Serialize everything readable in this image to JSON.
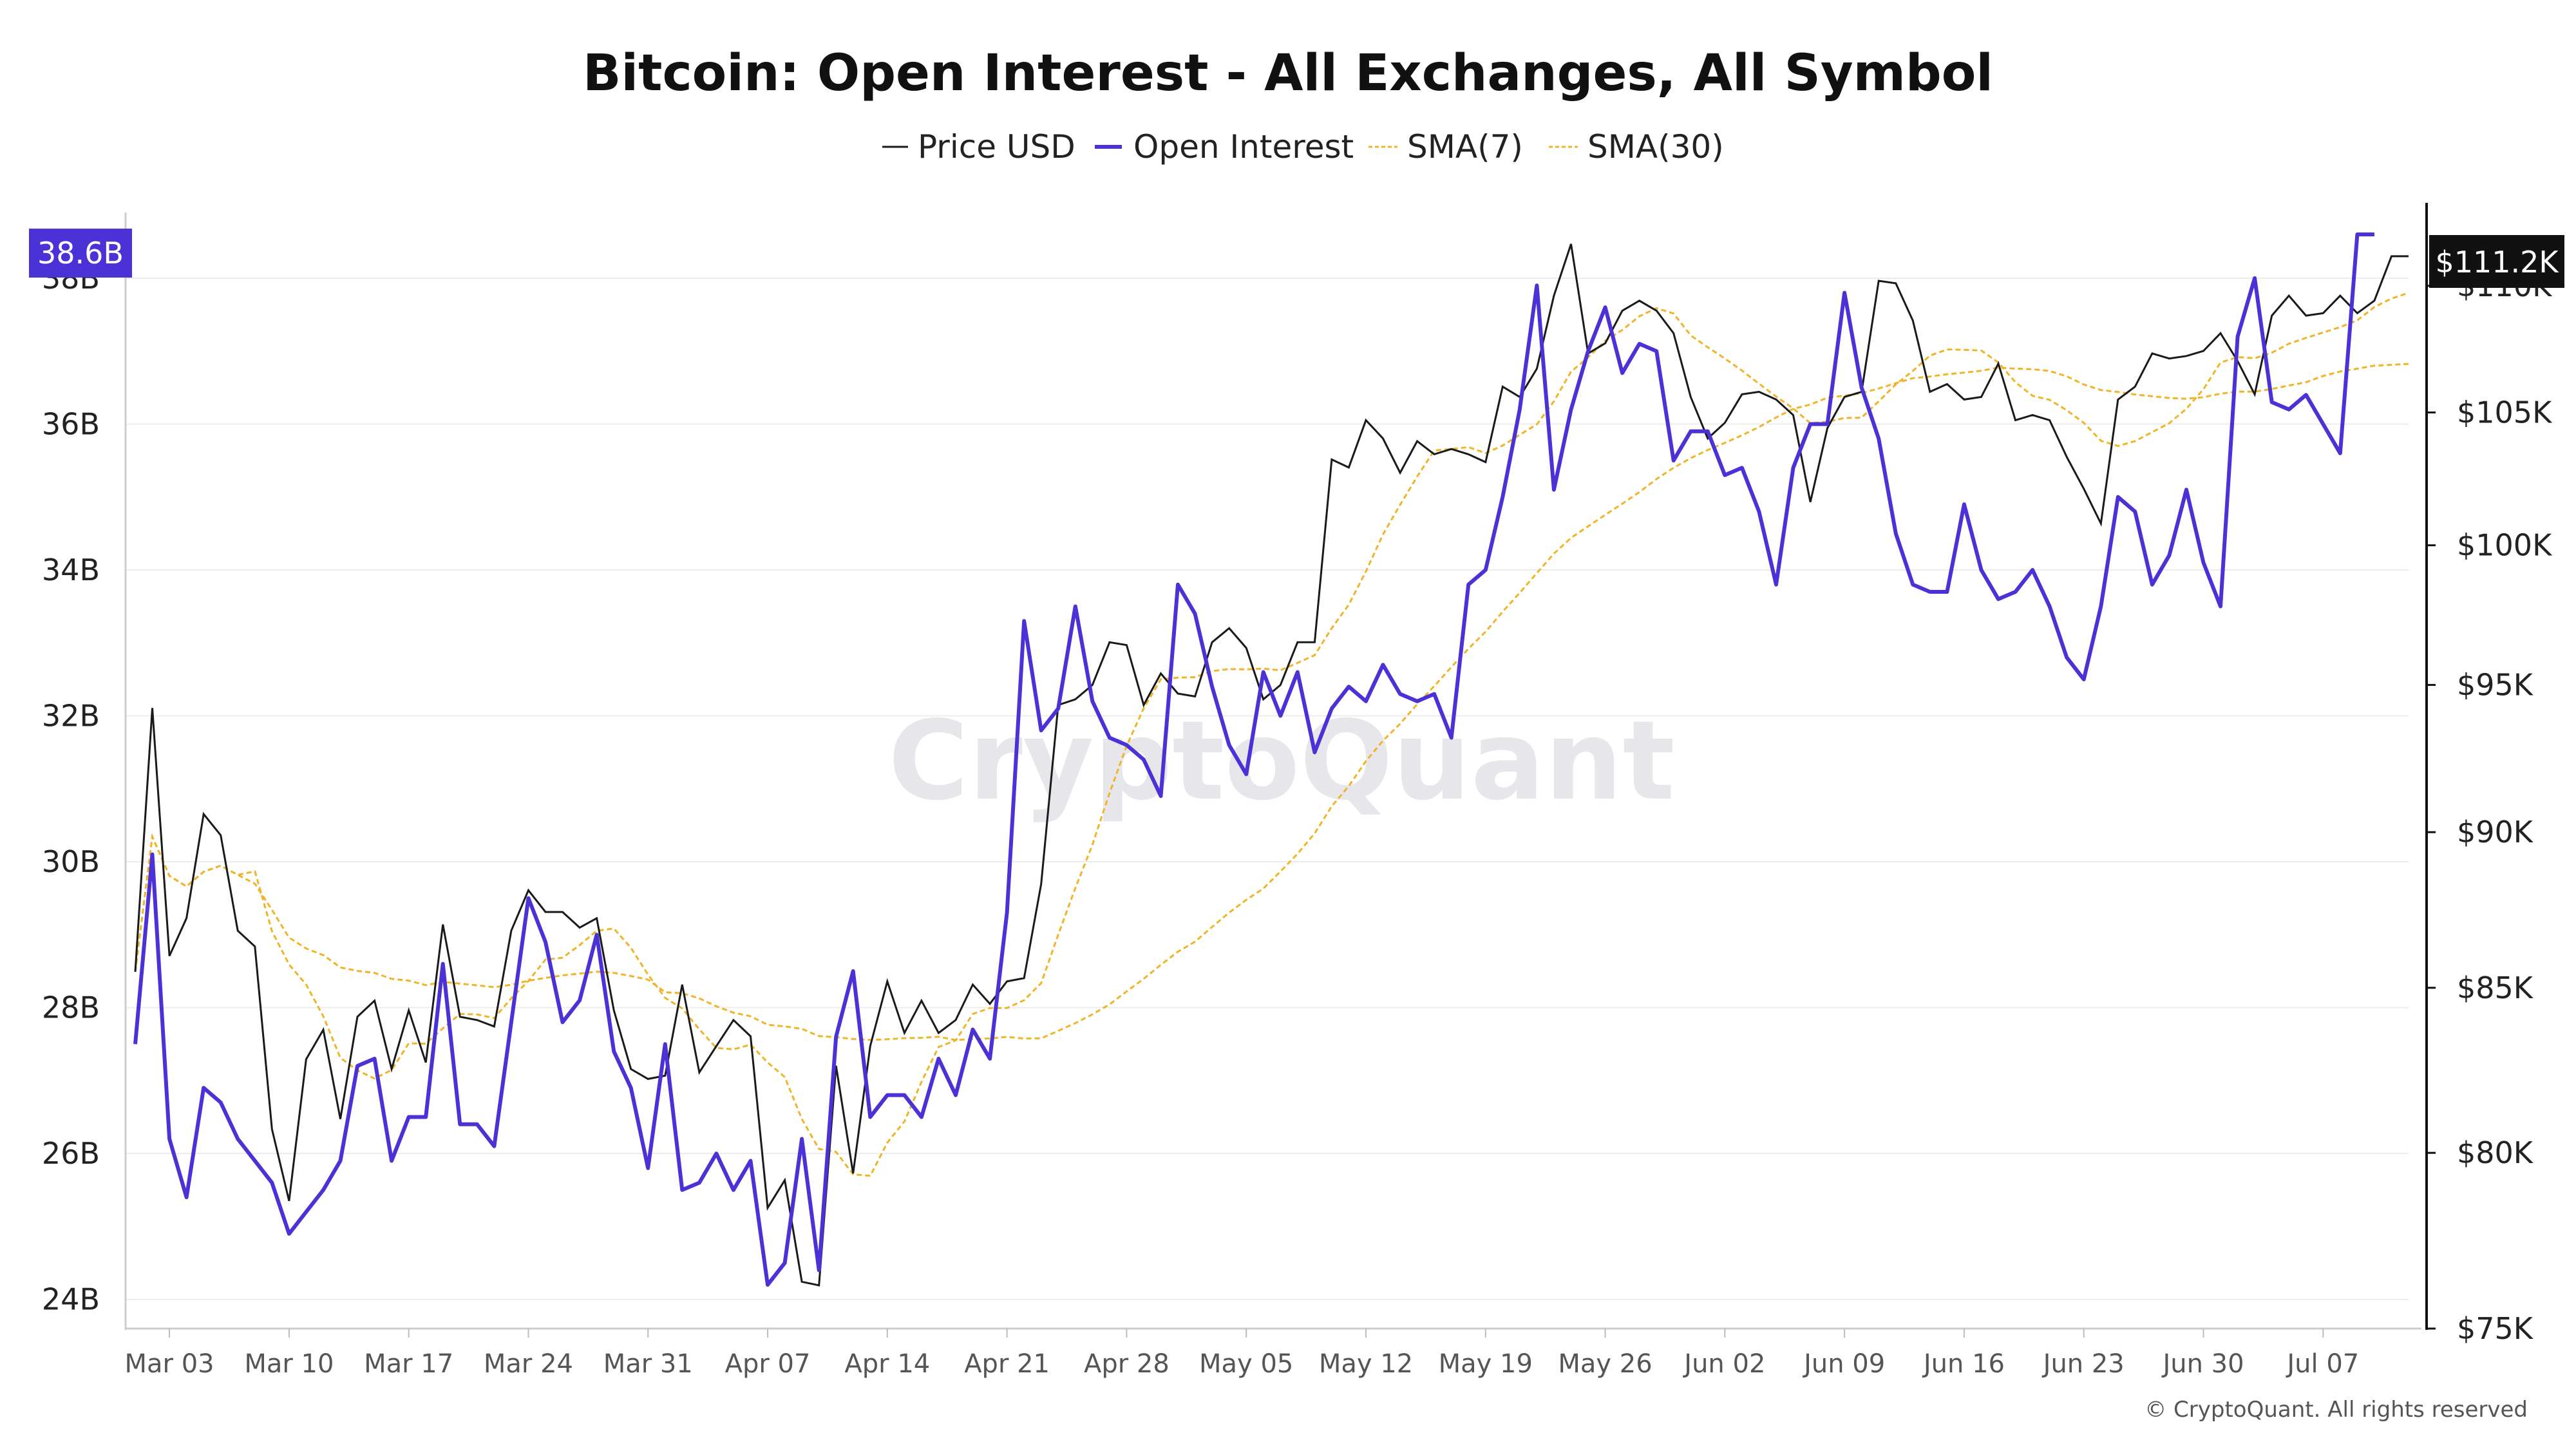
{
  "colors": {
    "price": "#1a1a1a",
    "open_interest": "#4b32d6",
    "sma": "#f0b429",
    "badge_left_bg": "#4b32d6",
    "badge_right_bg": "#111111",
    "grid": "#ececec"
  },
  "watermark": "CryptoQuant",
  "copyright": "© CryptoQuant. All rights reserved",
  "chart_data": {
    "type": "line",
    "title": "Bitcoin: Open Interest - All Exchanges, All Symbol",
    "legend": {
      "placement": "top-center",
      "entries": [
        "Price USD",
        "Open Interest",
        "SMA(7)",
        "SMA(30)"
      ]
    },
    "x_start": "Mar 01",
    "x_ticks": [
      "Mar 03",
      "Mar 10",
      "Mar 17",
      "Mar 24",
      "Mar 31",
      "Apr 07",
      "Apr 14",
      "Apr 21",
      "Apr 28",
      "May 05",
      "May 12",
      "May 19",
      "May 26",
      "Jun 02",
      "Jun 09",
      "Jun 16",
      "Jun 23",
      "Jun 30",
      "Jul 07"
    ],
    "y_left": {
      "ticks": [
        "24B",
        "26B",
        "28B",
        "30B",
        "32B",
        "34B",
        "36B",
        "38B"
      ],
      "tick_values": [
        24,
        26,
        28,
        30,
        32,
        34,
        36,
        38
      ],
      "range": [
        23.6,
        38.9
      ],
      "unit": "B"
    },
    "y_right": {
      "ticks": [
        "$75K",
        "$80K",
        "$85K",
        "$90K",
        "$95K",
        "$100K",
        "$105K",
        "$110K"
      ],
      "tick_values": [
        75,
        80,
        85,
        90,
        95,
        100,
        105,
        110
      ],
      "range": [
        75,
        113
      ],
      "scale": "log",
      "unit": "K"
    },
    "badges": {
      "left": "38.6B",
      "left_value": 38.6,
      "right": "$111.2K",
      "right_value": 111.2
    },
    "series": [
      {
        "name": "Price USD",
        "axis": "right",
        "values": [
          85.5,
          94.2,
          86.0,
          87.2,
          90.6,
          89.9,
          86.8,
          86.3,
          80.7,
          78.6,
          82.8,
          83.7,
          81.0,
          84.1,
          84.6,
          82.5,
          84.3,
          82.7,
          87.0,
          84.1,
          84.0,
          83.8,
          86.8,
          88.1,
          87.4,
          87.4,
          86.9,
          87.2,
          84.3,
          82.5,
          82.2,
          82.3,
          85.1,
          82.4,
          83.2,
          84.0,
          83.5,
          78.4,
          79.2,
          76.3,
          76.2,
          82.6,
          79.4,
          83.2,
          85.2,
          83.6,
          84.6,
          83.6,
          84.0,
          85.1,
          84.5,
          85.2,
          85.3,
          88.3,
          94.3,
          94.5,
          95.0,
          96.5,
          96.4,
          94.3,
          95.4,
          94.7,
          94.6,
          96.5,
          97.0,
          96.3,
          94.5,
          95.0,
          96.5,
          96.5,
          103.2,
          102.9,
          104.7,
          104.0,
          102.7,
          103.9,
          103.4,
          103.6,
          103.4,
          103.1,
          106.0,
          105.6,
          106.7,
          109.6,
          111.7,
          107.3,
          107.7,
          109.0,
          109.4,
          109.0,
          108.1,
          105.6,
          104.0,
          104.6,
          105.7,
          105.8,
          105.5,
          104.9,
          101.6,
          104.4,
          105.6,
          105.8,
          110.2,
          110.1,
          108.6,
          105.8,
          106.1,
          105.5,
          105.6,
          106.9,
          104.7,
          104.9,
          104.7,
          103.3,
          102.1,
          100.8,
          105.5,
          106.0,
          107.3,
          107.1,
          107.2,
          107.4,
          108.1,
          107.0,
          105.7,
          108.8,
          109.6,
          108.8,
          108.9,
          109.6,
          108.9,
          109.4,
          111.2,
          111.2
        ],
        "values_unit": "$K"
      },
      {
        "name": "Open Interest",
        "axis": "left",
        "values": [
          27.5,
          30.1,
          26.2,
          25.4,
          26.9,
          26.7,
          26.2,
          25.9,
          25.6,
          24.9,
          25.2,
          25.5,
          25.9,
          27.2,
          27.3,
          25.9,
          26.5,
          26.5,
          28.6,
          26.4,
          26.4,
          26.1,
          27.8,
          29.5,
          28.9,
          27.8,
          28.1,
          29.0,
          27.4,
          26.9,
          25.8,
          27.5,
          25.5,
          25.6,
          26.0,
          25.5,
          25.9,
          24.2,
          24.5,
          26.2,
          24.4,
          27.6,
          28.5,
          26.5,
          26.8,
          26.8,
          26.5,
          27.3,
          26.8,
          27.7,
          27.3,
          29.3,
          33.3,
          31.8,
          32.1,
          33.5,
          32.2,
          31.7,
          31.6,
          31.4,
          30.9,
          33.8,
          33.4,
          32.4,
          31.6,
          31.2,
          32.6,
          32.0,
          32.6,
          31.5,
          32.1,
          32.4,
          32.2,
          32.7,
          32.3,
          32.2,
          32.3,
          31.7,
          33.8,
          34.0,
          35.0,
          36.2,
          37.9,
          35.1,
          36.2,
          37.0,
          37.6,
          36.7,
          37.1,
          37.0,
          35.5,
          35.9,
          35.9,
          35.3,
          35.4,
          34.8,
          33.8,
          35.4,
          36.0,
          36.0,
          37.8,
          36.5,
          35.8,
          34.5,
          33.8,
          33.7,
          33.7,
          34.9,
          34.0,
          33.6,
          33.7,
          34.0,
          33.5,
          32.8,
          32.5,
          33.5,
          35.0,
          34.8,
          33.8,
          34.2,
          35.1,
          34.1,
          33.5,
          37.2,
          38.0,
          36.3,
          36.2,
          36.4,
          36.0,
          35.6,
          38.6,
          38.6
        ],
        "values_unit": "B"
      }
    ],
    "sma": [
      {
        "name": "SMA(7)",
        "source": "Price USD",
        "window": 7
      },
      {
        "name": "SMA(30)",
        "source": "Price USD",
        "window": 30
      }
    ],
    "grid": true
  }
}
